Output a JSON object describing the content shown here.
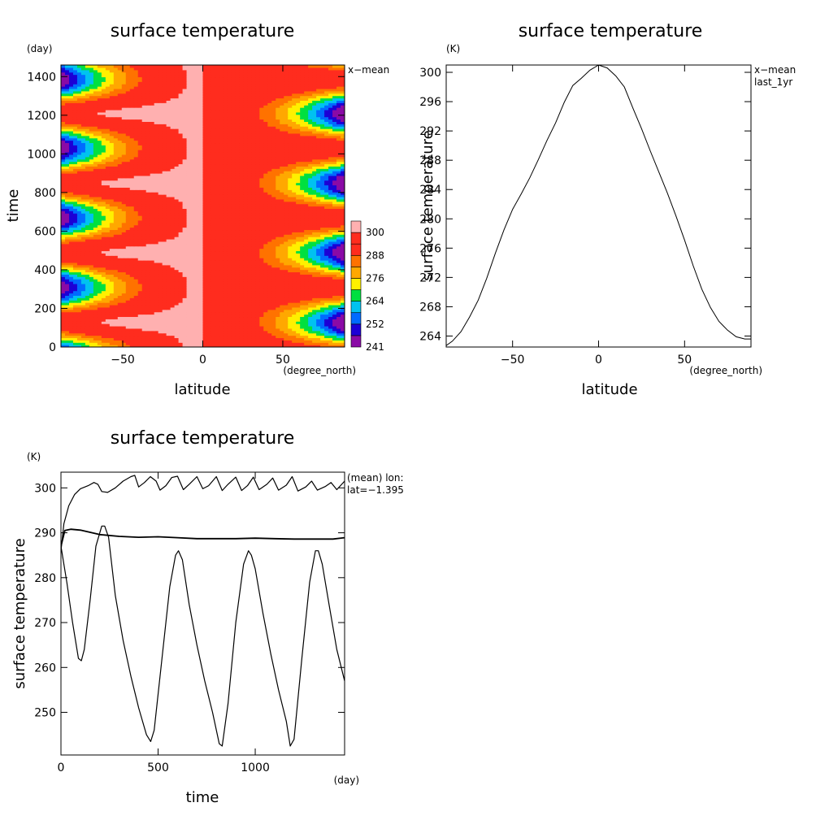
{
  "chart_data": [
    {
      "type": "heatmap",
      "title": "surface temperature",
      "xlabel": "latitude",
      "xunits": "(degree_north)",
      "ylabel": "time",
      "yunits": "(day)",
      "annotation": "x−mean",
      "xlim": [
        -88.6,
        88.6
      ],
      "ylim": [
        0,
        1460
      ],
      "xticks": [
        -50,
        0,
        50
      ],
      "yticks": [
        0,
        200,
        400,
        600,
        800,
        1000,
        1200,
        1400
      ],
      "colorbar": {
        "levels": [
          241,
          246,
          252,
          258,
          264,
          270,
          276,
          282,
          288,
          294,
          300
        ],
        "labels": [
          "241",
          "252",
          "264",
          "276",
          "288",
          "300"
        ],
        "colors": [
          "#8a0aa6",
          "#1c00d6",
          "#006bff",
          "#00c2f0",
          "#00e040",
          "#fff000",
          "#ffa800",
          "#ff7200",
          "#ff2c1e",
          "#ff2c1e",
          "#ffb0b0"
        ]
      }
    },
    {
      "type": "line",
      "title": "surface temperature",
      "xlabel": "latitude",
      "xunits": "(degree_north)",
      "ylabel": "surface temperature",
      "yunits": "(K)",
      "annotation": [
        "x−mean",
        "last_1yr"
      ],
      "xlim": [
        -88.6,
        88.6
      ],
      "ylim": [
        262.5,
        301
      ],
      "xticks": [
        -50,
        0,
        50
      ],
      "yticks": [
        264,
        268,
        272,
        276,
        280,
        284,
        288,
        292,
        296,
        300
      ],
      "x": [
        -88.6,
        -85,
        -80,
        -75,
        -70,
        -65,
        -60,
        -55,
        -50,
        -45,
        -40,
        -35,
        -30,
        -25,
        -20,
        -15,
        -10,
        -5,
        0,
        5,
        10,
        15,
        20,
        25,
        30,
        35,
        40,
        45,
        50,
        55,
        60,
        65,
        70,
        75,
        80,
        85,
        88.6
      ],
      "y": [
        262.7,
        263.3,
        264.6,
        266.6,
        268.9,
        271.9,
        275.3,
        278.5,
        281.3,
        283.4,
        285.6,
        288.1,
        290.7,
        293.1,
        295.9,
        298.2,
        299.2,
        300.3,
        301,
        300.6,
        299.5,
        298.0,
        295.1,
        292.3,
        289.3,
        286.4,
        283.5,
        280.4,
        277.1,
        273.6,
        270.4,
        267.9,
        266.0,
        264.8,
        263.9,
        263.6,
        263.6
      ]
    },
    {
      "type": "line",
      "title": "surface temperature",
      "xlabel": "time",
      "xunits": "(day)",
      "ylabel": "surface temperature",
      "yunits": "(K)",
      "annotation": [
        "(mean) lon:",
        "lat=−1.395"
      ],
      "xlim": [
        0,
        1460
      ],
      "ylim": [
        240.5,
        303.5
      ],
      "xticks": [
        0,
        500,
        1000
      ],
      "yticks": [
        250,
        260,
        270,
        280,
        290,
        300
      ],
      "series": [
        {
          "x": [
            0,
            15,
            40,
            70,
            100,
            140,
            170,
            190,
            210,
            240,
            280,
            320,
            360,
            380,
            400,
            430,
            460,
            490,
            510,
            540,
            570,
            600,
            630,
            660,
            700,
            730,
            760,
            800,
            830,
            860,
            900,
            930,
            960,
            990,
            1020,
            1060,
            1090,
            1120,
            1160,
            1190,
            1220,
            1260,
            1290,
            1320,
            1360,
            1390,
            1420,
            1460
          ],
          "y": [
            286,
            292,
            296,
            298.5,
            299.8,
            300.5,
            301.2,
            300.8,
            299.2,
            299.0,
            300.0,
            301.5,
            302.5,
            302.8,
            300.2,
            301.2,
            302.5,
            301.5,
            299.5,
            300.5,
            302.3,
            302.6,
            299.6,
            300.8,
            302.5,
            299.8,
            300.5,
            302.5,
            299.4,
            300.8,
            302.4,
            299.4,
            300.5,
            302.4,
            299.6,
            300.8,
            302.2,
            299.5,
            300.6,
            302.5,
            299.3,
            300.2,
            301.5,
            299.5,
            300.3,
            301.2,
            299.6,
            301.5
          ]
        },
        {
          "x": [
            0,
            20,
            50,
            100,
            150,
            200,
            300,
            400,
            500,
            600,
            700,
            800,
            900,
            1000,
            1100,
            1200,
            1300,
            1400,
            1460
          ],
          "y": [
            287,
            290.5,
            290.8,
            290.6,
            290.1,
            289.6,
            289.2,
            289.0,
            289.1,
            288.9,
            288.7,
            288.7,
            288.7,
            288.8,
            288.7,
            288.6,
            288.6,
            288.6,
            288.9
          ]
        },
        {
          "x": [
            0,
            30,
            60,
            90,
            105,
            120,
            150,
            180,
            210,
            225,
            245,
            280,
            320,
            360,
            400,
            440,
            462,
            480,
            520,
            560,
            590,
            605,
            625,
            660,
            700,
            740,
            780,
            815,
            830,
            860,
            900,
            940,
            965,
            980,
            1000,
            1040,
            1080,
            1120,
            1160,
            1180,
            1200,
            1240,
            1280,
            1310,
            1325,
            1345,
            1380,
            1420,
            1460
          ],
          "y": [
            287,
            279,
            270,
            262,
            261.5,
            264,
            275,
            287,
            291.5,
            291.5,
            289,
            276,
            266,
            258,
            251,
            245,
            243.5,
            246,
            262,
            278,
            285,
            286,
            284,
            274,
            265,
            257,
            250,
            243,
            242.5,
            252,
            270,
            283,
            286,
            285,
            282,
            272,
            263,
            255,
            248,
            242.5,
            244,
            262,
            279,
            286,
            286,
            283,
            274,
            264,
            257
          ]
        }
      ]
    }
  ]
}
